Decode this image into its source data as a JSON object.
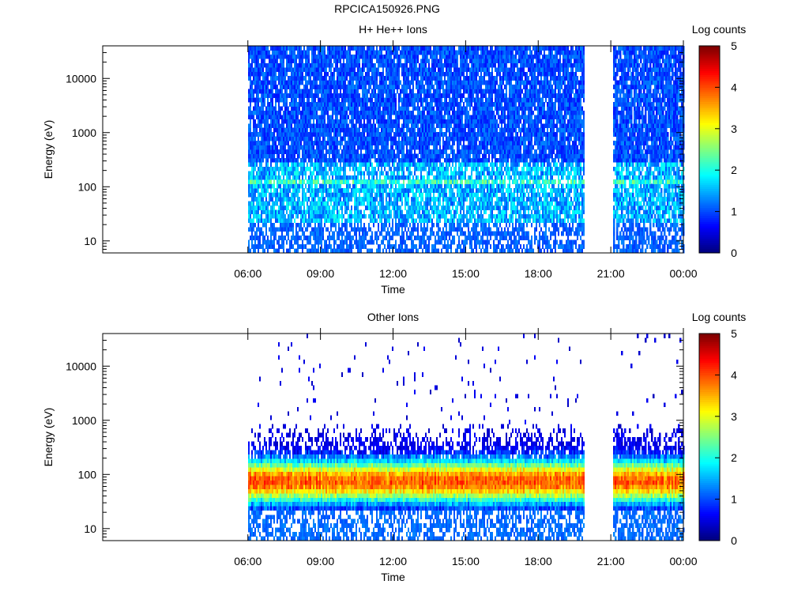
{
  "page_title": "RPCICA150926.PNG",
  "chart_data": [
    {
      "type": "heatmap",
      "title": "H+ He++ Ions",
      "xlabel": "Time",
      "ylabel": "Energy (eV)",
      "x_ticks": [
        "06:00",
        "09:00",
        "12:00",
        "15:00",
        "18:00",
        "21:00",
        "00:00"
      ],
      "x_range_hours": [
        0,
        24
      ],
      "y_scale": "log",
      "y_ticks": [
        "10",
        "100",
        "1000",
        "10000"
      ],
      "y_range": [
        6,
        40000
      ],
      "data_intervals_hours": [
        [
          6.0,
          19.9
        ],
        [
          21.1,
          24.0
        ]
      ],
      "typical_log_counts": {
        "below_20eV": 1,
        "20_to_300eV": 1.2,
        "above_300eV": 0.8
      },
      "colorbar": {
        "label": "Log counts",
        "ticks": [
          "0",
          "1",
          "2",
          "3",
          "4",
          "5"
        ],
        "range": [
          0,
          5
        ]
      },
      "grid": false
    },
    {
      "type": "heatmap",
      "title": "Other Ions",
      "xlabel": "Time",
      "ylabel": "Energy (eV)",
      "x_ticks": [
        "06:00",
        "09:00",
        "12:00",
        "15:00",
        "18:00",
        "21:00",
        "00:00"
      ],
      "x_range_hours": [
        0,
        24
      ],
      "y_scale": "log",
      "y_ticks": [
        "10",
        "100",
        "1000",
        "10000"
      ],
      "y_range": [
        6,
        40000
      ],
      "data_intervals_hours": [
        [
          6.0,
          19.9
        ],
        [
          21.1,
          24.0
        ]
      ],
      "peak_band_eV": [
        30,
        300
      ],
      "peak_center_eV": 75,
      "typical_log_counts": {
        "below_20eV": 1,
        "band_peak": 3.8,
        "above_1000eV": 0.3
      },
      "colorbar": {
        "label": "Log counts",
        "ticks": [
          "0",
          "1",
          "2",
          "3",
          "4",
          "5"
        ],
        "range": [
          0,
          5
        ]
      },
      "grid": false
    }
  ]
}
